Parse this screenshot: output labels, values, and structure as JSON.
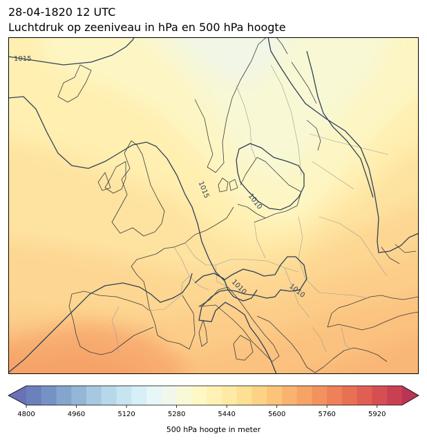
{
  "header": {
    "datetime": "28-04-1820 12 UTC",
    "subtitle": "Luchtdruk op zeeniveau in hPa en 500 hPa hoogte"
  },
  "map": {
    "isobar_labels": [
      "1015",
      "1015",
      "1010",
      "1010",
      "1010"
    ],
    "isobar_color": "#2e3f55",
    "coast_color": "#3a3a3a",
    "border_color": "#9a9a9a"
  },
  "colorbar": {
    "label": "500 hPa hoogte in meter",
    "min": 4800,
    "max": 6000,
    "step": 40,
    "ticks": [
      4800,
      4960,
      5120,
      5280,
      5440,
      5600,
      5760,
      5920
    ],
    "tick_labels": [
      "4800",
      "4960",
      "5120",
      "5280",
      "5440",
      "5600",
      "5760",
      "5920"
    ],
    "colors": [
      "#6a71b4",
      "#6c80bb",
      "#7592c4",
      "#84a5cd",
      "#94b7d7",
      "#a6c9e1",
      "#b6d8ea",
      "#c7e5f1",
      "#d7eff7",
      "#e7f6f6",
      "#f1f7ea",
      "#f8f9d7",
      "#fdf8c4",
      "#fff2b4",
      "#feeaa4",
      "#fde094",
      "#fcd386",
      "#fbc479",
      "#f8b46e",
      "#f5a466",
      "#f2935f",
      "#ee815a",
      "#e87055",
      "#e15e53",
      "#d64e52",
      "#c94052",
      "#b93455"
    ]
  }
}
